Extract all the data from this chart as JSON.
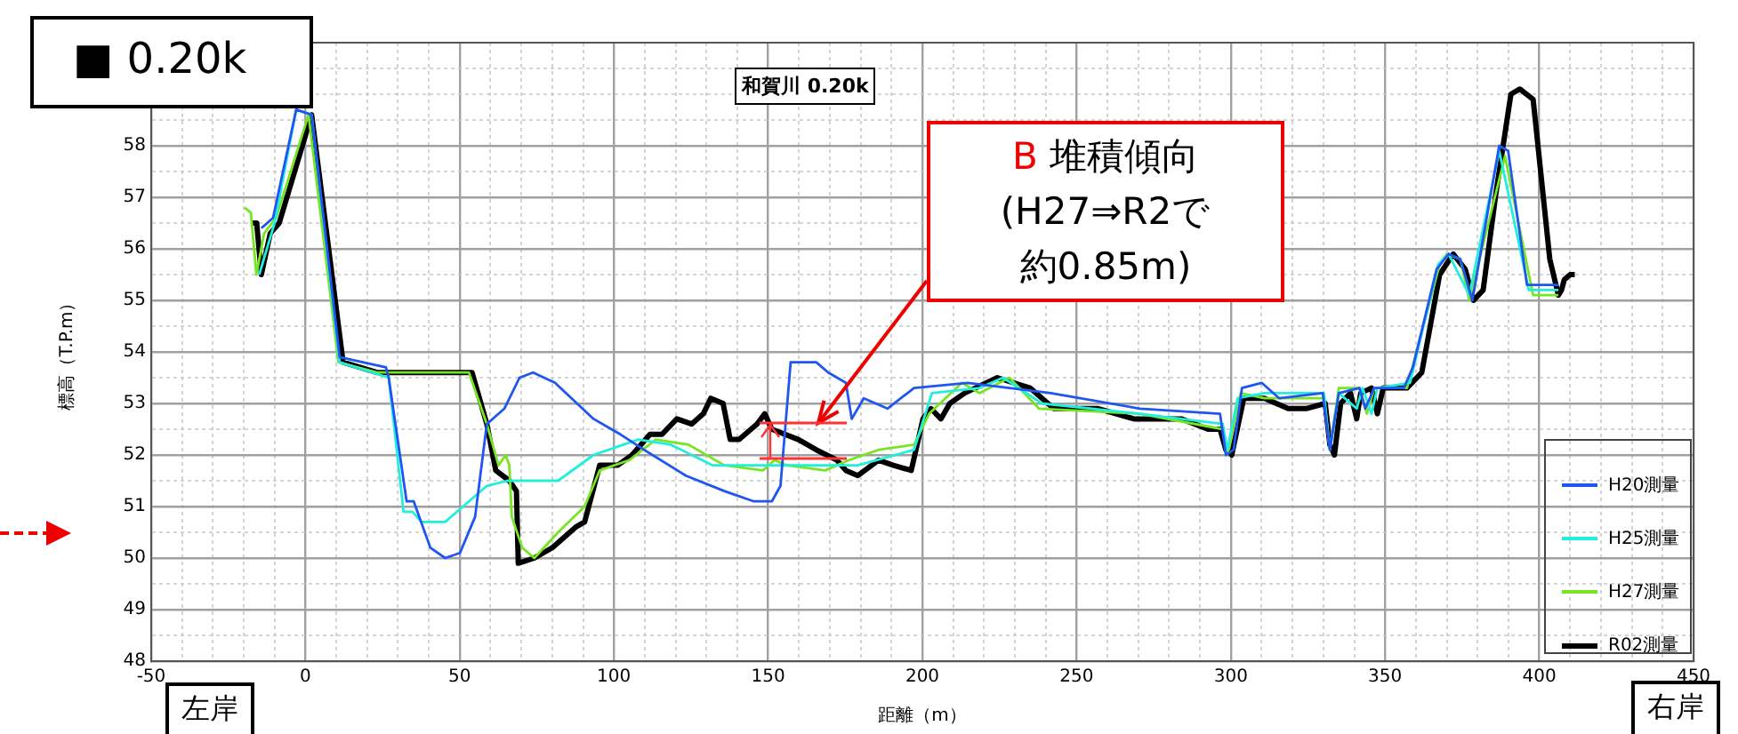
{
  "chart_data": {
    "type": "line",
    "title": "和賀川 0.20k",
    "xlabel": "距離（m）",
    "ylabel": "標高（T.P.m）",
    "xlim": [
      -50,
      450
    ],
    "ylim": [
      48,
      60
    ],
    "xticks": [
      -50,
      {
        "value": -40,
        "label": null
      },
      {
        "value": -30,
        "label": null
      },
      {
        "value": -20,
        "label": null
      },
      {
        "value": -10,
        "label": null
      },
      0,
      {
        "value": 10,
        "label": null
      },
      {
        "value": 20,
        "label": null
      },
      {
        "value": 30,
        "label": null
      },
      {
        "value": 40,
        "label": null
      },
      50,
      {
        "value": 60,
        "label": null
      },
      {
        "value": 70,
        "label": null
      },
      {
        "value": 80,
        "label": null
      },
      {
        "value": 90,
        "label": null
      },
      100,
      {
        "value": 110,
        "label": null
      },
      {
        "value": 120,
        "label": null
      },
      {
        "value": 130,
        "label": null
      },
      {
        "value": 140,
        "label": null
      },
      150,
      {
        "value": 160,
        "label": null
      },
      {
        "value": 170,
        "label": null
      },
      {
        "value": 180,
        "label": null
      },
      {
        "value": 190,
        "label": null
      },
      200,
      {
        "value": 210,
        "label": null
      },
      {
        "value": 220,
        "label": null
      },
      {
        "value": 230,
        "label": null
      },
      {
        "value": 240,
        "label": null
      },
      250,
      {
        "value": 260,
        "label": null
      },
      {
        "value": 270,
        "label": null
      },
      {
        "value": 280,
        "label": null
      },
      {
        "value": 290,
        "label": null
      },
      300,
      {
        "value": 310,
        "label": null
      },
      {
        "value": 320,
        "label": null
      },
      {
        "value": 330,
        "label": null
      },
      {
        "value": 340,
        "label": null
      },
      350,
      {
        "value": 360,
        "label": null
      },
      {
        "value": 370,
        "label": null
      },
      {
        "value": 380,
        "label": null
      },
      {
        "value": 390,
        "label": null
      },
      400,
      {
        "value": 410,
        "label": null
      },
      {
        "value": 420,
        "label": null
      },
      {
        "value": 430,
        "label": null
      },
      {
        "value": 440,
        "label": null
      },
      450
    ],
    "yticks": [
      48,
      {
        "value": 48.5,
        "label": null
      },
      49,
      {
        "value": 49.5,
        "label": null
      },
      50,
      {
        "value": 50.5,
        "label": null
      },
      51,
      {
        "value": 51.5,
        "label": null
      },
      52,
      {
        "value": 52.5,
        "label": null
      },
      53,
      {
        "value": 53.5,
        "label": null
      },
      54,
      {
        "value": 54.5,
        "label": null
      },
      55,
      {
        "value": 55.5,
        "label": null
      },
      56,
      {
        "value": 56.5,
        "label": null
      },
      57,
      {
        "value": 57.5,
        "label": null
      },
      58,
      {
        "value": 58.5,
        "label": null
      },
      {
        "value": 59,
        "label": null
      },
      {
        "value": 59.5,
        "label": null
      },
      {
        "value": 60,
        "label": null
      }
    ],
    "grid": true,
    "legend": "bottom right",
    "marker": "none",
    "line_style": "solid",
    "series": [
      {
        "name": "H20測量",
        "color": "#1f55f0",
        "x": [
          -14.3,
          -10.5,
          -3,
          2,
          11.1,
          26.1,
          27,
          32.8,
          35.1,
          40.5,
          45.3,
          50.1,
          55,
          58.8,
          64.5,
          69.4,
          73.8,
          80.9,
          93.4,
          99.2,
          102.1,
          109.8,
          123.3,
          135.8,
          145.4,
          151.2,
          154,
          157.3,
          165.6,
          169.5,
          175.2,
          177.1,
          181,
          188.7,
          197.3,
          214.7,
          228.2,
          241.6,
          270.5,
          296.5,
          298.4,
          300.9,
          303.6,
          310,
          315.7,
          329.8,
          332.1,
          335,
          341.7,
          343.6,
          346.5,
          356.1,
          359,
          366.7,
          370.6,
          374.4,
          378.3,
          387,
          389.9,
          396,
          406.2
        ],
        "values": [
          56.4,
          56.6,
          58.7,
          58.6,
          53.9,
          53.7,
          53.5,
          51.1,
          51.1,
          50.2,
          50,
          50.1,
          50.8,
          52.6,
          52.9,
          53.5,
          53.6,
          53.4,
          52.7,
          52.5,
          52.4,
          52.1,
          51.6,
          51.3,
          51.1,
          51.1,
          51.4,
          53.8,
          53.8,
          53.6,
          53.4,
          52.7,
          53.1,
          52.9,
          53.3,
          53.4,
          53.3,
          53.2,
          52.9,
          52.8,
          52,
          52.1,
          53.3,
          53.4,
          53.1,
          53.2,
          52.1,
          53.2,
          53.3,
          52.9,
          53.3,
          53.3,
          53.7,
          55.6,
          55.9,
          55.8,
          55,
          58,
          57.9,
          55.3,
          55.3
        ]
      },
      {
        "name": "H25測量",
        "color": "#22eedd",
        "x": [
          -15,
          -10,
          -3,
          2,
          11,
          27,
          31.8,
          34.7,
          37.6,
          45.3,
          58.8,
          65.5,
          81.9,
          93.4,
          107.9,
          118.5,
          131.9,
          151.2,
          160.8,
          179.1,
          197.3,
          203.1,
          218.5,
          226.2,
          238.7,
          270.5,
          297.4,
          298.9,
          302.2,
          310.9,
          330.2,
          332.1,
          335,
          340.8,
          342.7,
          345.6,
          347.5,
          358.1,
          367.2,
          370.6,
          377.3,
          387,
          396.6,
          406.2
        ],
        "values": [
          55.5,
          56.5,
          58.7,
          58.6,
          53.8,
          53.5,
          50.9,
          50.9,
          50.7,
          50.7,
          51.4,
          51.5,
          51.5,
          52,
          52.3,
          52.2,
          51.8,
          51.8,
          51.8,
          51.8,
          52.1,
          53.2,
          53.3,
          53.5,
          53,
          52.8,
          52.6,
          52.1,
          53.1,
          53.2,
          53.2,
          52.1,
          53.2,
          52.9,
          53.3,
          52.8,
          53.3,
          53.4,
          55.7,
          55.9,
          55.1,
          57.9,
          55.2,
          55.2
        ]
      },
      {
        "name": "H27測量",
        "color": "#77e622",
        "x": [
          -19.7,
          -17.7,
          -15.9,
          -13.4,
          -9.5,
          1,
          10.7,
          23.2,
          53,
          58.8,
          62.6,
          64.9,
          66.1,
          66.9,
          70.3,
          74.2,
          81.9,
          90.5,
          95.4,
          105,
          113.6,
          124.2,
          135.8,
          148.3,
          152.1,
          156,
          168.5,
          176.2,
          185.8,
          197.3,
          202.2,
          212.8,
          218.5,
          228.2,
          237.8,
          270.5,
          297.4,
          298.9,
          303.2,
          310.9,
          330.2,
          332.1,
          335,
          341.7,
          344.1,
          346.5,
          357.1,
          367.7,
          370,
          374.4,
          377.3,
          388.9,
          398,
          406.2
        ],
        "values": [
          56.8,
          56.7,
          55.5,
          56.3,
          56.6,
          58.6,
          53.8,
          53.6,
          53.6,
          52.6,
          51.8,
          52,
          51.8,
          50.8,
          50.2,
          50,
          50.5,
          51,
          51.7,
          51.9,
          52.3,
          52.2,
          51.8,
          51.7,
          51.9,
          51.8,
          51.7,
          51.9,
          52.1,
          52.2,
          52.8,
          53.4,
          53.2,
          53.5,
          52.9,
          52.8,
          52.5,
          52,
          53.2,
          53.1,
          53.1,
          52.1,
          53.3,
          53.3,
          52.8,
          53.3,
          53.3,
          55.7,
          55.9,
          55.8,
          55,
          57.8,
          55.1,
          55.1
        ]
      },
      {
        "name": "R02測量",
        "color": "#000000",
        "x": [
          -17.2,
          -15.8,
          -14.3,
          -11.4,
          -8.5,
          2,
          12.2,
          23.2,
          47.2,
          54,
          58.8,
          61.7,
          66.1,
          68.4,
          69,
          74.2,
          80,
          87.6,
          90.5,
          95.4,
          101.2,
          105.9,
          111.7,
          115.6,
          120.4,
          125.2,
          129,
          131.4,
          135.4,
          137.7,
          140.6,
          146.4,
          148.9,
          151.2,
          159.8,
          165.6,
          172.3,
          175.2,
          179.1,
          185.8,
          190.6,
          196.4,
          200.2,
          202.8,
          206,
          208.9,
          213.7,
          224.3,
          234.9,
          242.6,
          257,
          268.6,
          284,
          292.6,
          296.5,
          298.4,
          300.3,
          301.7,
          304.2,
          310.9,
          318.6,
          324.4,
          330.6,
          332.1,
          333.6,
          335.6,
          338.8,
          340.8,
          342.1,
          345.6,
          347.5,
          349.4,
          357.1,
          361.9,
          367.7,
          372.1,
          376,
          378.7,
          381.8,
          386,
          390.8,
          393.7,
          398,
          403.4,
          406.2,
          407.2,
          408.1,
          410,
          411.5
        ],
        "values": [
          56.5,
          56.5,
          55.5,
          56.3,
          56.5,
          58.6,
          53.8,
          53.6,
          53.6,
          53.6,
          52.6,
          51.7,
          51.5,
          51.3,
          49.9,
          50,
          50.2,
          50.6,
          50.7,
          51.8,
          51.8,
          52,
          52.4,
          52.4,
          52.7,
          52.6,
          52.8,
          53.1,
          53,
          52.3,
          52.3,
          52.6,
          52.8,
          52.5,
          52.3,
          52.1,
          51.9,
          51.7,
          51.6,
          51.9,
          51.8,
          51.7,
          52.7,
          52.9,
          52.7,
          53,
          53.2,
          53.5,
          53.3,
          52.9,
          52.9,
          52.7,
          52.7,
          52.5,
          52.5,
          52.1,
          52,
          52.4,
          53.1,
          53.1,
          52.9,
          52.9,
          53,
          52.2,
          52,
          53,
          53.2,
          52.7,
          53.2,
          53.3,
          52.8,
          53.3,
          53.3,
          53.6,
          55.5,
          55.9,
          55.6,
          55,
          55.2,
          57.1,
          59,
          59.1,
          58.9,
          55.8,
          55.1,
          55.2,
          55.4,
          55.5,
          55.5
        ]
      }
    ],
    "annotations": [
      "■ 0.20k",
      "B 堆積傾向(H27⇒R2で約0.85m)",
      "左岸",
      "右岸"
    ]
  }
}
